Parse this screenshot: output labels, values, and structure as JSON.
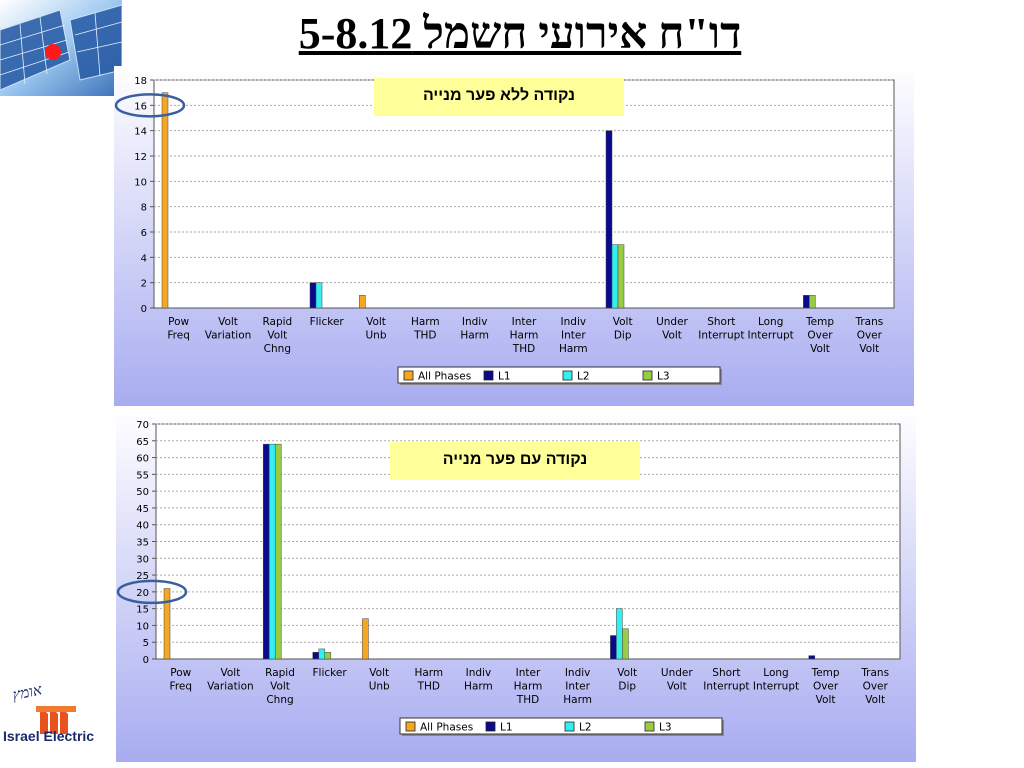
{
  "slide": {
    "title": "דו\"ח אירועי חשמל 5-8.12",
    "company_label": "Israel Electric"
  },
  "colors": {
    "all_phases": "#f5a623",
    "L1": "#0a0a8c",
    "L2": "#33f0f0",
    "L3": "#99cc44",
    "ellipse": "#3a5f9f",
    "panel_bg_top": "#ffffff",
    "panel_bg_bottom": "#a8acf0"
  },
  "chart_data": [
    {
      "type": "bar",
      "note": "נקודה ללא פער מנייה",
      "categories": [
        [
          "Pow",
          "Freq"
        ],
        [
          "Volt",
          "Variation"
        ],
        [
          "Rapid",
          "Volt",
          "Chng"
        ],
        [
          "Flicker"
        ],
        [
          "Volt",
          "Unb"
        ],
        [
          "Harm",
          "THD"
        ],
        [
          "Indiv",
          "Harm"
        ],
        [
          "Inter",
          "Harm",
          "THD"
        ],
        [
          "Indiv",
          "Inter",
          "Harm"
        ],
        [
          "Volt",
          "Dip"
        ],
        [
          "Under",
          "Volt"
        ],
        [
          "Short",
          "Interrupt"
        ],
        [
          "Long",
          "Interrupt"
        ],
        [
          "Temp",
          "Over",
          "Volt"
        ],
        [
          "Trans",
          "Over",
          "Volt"
        ]
      ],
      "series": [
        {
          "name": "All Phases",
          "values": [
            17,
            0,
            0,
            0,
            1,
            0,
            0,
            0,
            0,
            0,
            0,
            0,
            0,
            0,
            0
          ]
        },
        {
          "name": "L1",
          "values": [
            0,
            0,
            0,
            2,
            0,
            0,
            0,
            0,
            0,
            14,
            0,
            0,
            0,
            1,
            0
          ]
        },
        {
          "name": "L2",
          "values": [
            0,
            0,
            0,
            2,
            0,
            0,
            0,
            0,
            0,
            5,
            0,
            0,
            0,
            0,
            0
          ]
        },
        {
          "name": "L3",
          "values": [
            0,
            0,
            0,
            0,
            0,
            0,
            0,
            0,
            0,
            5,
            0,
            0,
            0,
            1,
            0
          ]
        }
      ],
      "ylim": [
        0,
        18
      ],
      "yticks": [
        0,
        2,
        4,
        6,
        8,
        10,
        12,
        14,
        16,
        18
      ],
      "grid": true,
      "legend_position": "bottom-center",
      "highlight_tick": 16
    },
    {
      "type": "bar",
      "note": "נקודה עם פער מנייה",
      "categories": [
        [
          "Pow",
          "Freq"
        ],
        [
          "Volt",
          "Variation"
        ],
        [
          "Rapid",
          "Volt",
          "Chng"
        ],
        [
          "Flicker"
        ],
        [
          "Volt",
          "Unb"
        ],
        [
          "Harm",
          "THD"
        ],
        [
          "Indiv",
          "Harm"
        ],
        [
          "Inter",
          "Harm",
          "THD"
        ],
        [
          "Indiv",
          "Inter",
          "Harm"
        ],
        [
          "Volt",
          "Dip"
        ],
        [
          "Under",
          "Volt"
        ],
        [
          "Short",
          "Interrupt"
        ],
        [
          "Long",
          "Interrupt"
        ],
        [
          "Temp",
          "Over",
          "Volt"
        ],
        [
          "Trans",
          "Over",
          "Volt"
        ]
      ],
      "series": [
        {
          "name": "All Phases",
          "values": [
            21,
            0,
            0,
            0,
            12,
            0,
            0,
            0,
            0,
            0,
            0,
            0,
            0,
            0,
            0
          ]
        },
        {
          "name": "L1",
          "values": [
            0,
            0,
            64,
            2,
            0,
            0,
            0,
            0,
            0,
            7,
            0,
            0,
            0,
            1,
            0
          ]
        },
        {
          "name": "L2",
          "values": [
            0,
            0,
            64,
            3,
            0,
            0,
            0,
            0,
            0,
            15,
            0,
            0,
            0,
            0,
            0
          ]
        },
        {
          "name": "L3",
          "values": [
            0,
            0,
            64,
            2,
            0,
            0,
            0,
            0,
            0,
            9,
            0,
            0,
            0,
            0,
            0
          ]
        }
      ],
      "ylim": [
        0,
        70
      ],
      "yticks": [
        0,
        5,
        10,
        15,
        20,
        25,
        30,
        35,
        40,
        45,
        50,
        55,
        60,
        65,
        70
      ],
      "grid": true,
      "legend_position": "bottom-center",
      "highlight_tick": 20
    }
  ]
}
